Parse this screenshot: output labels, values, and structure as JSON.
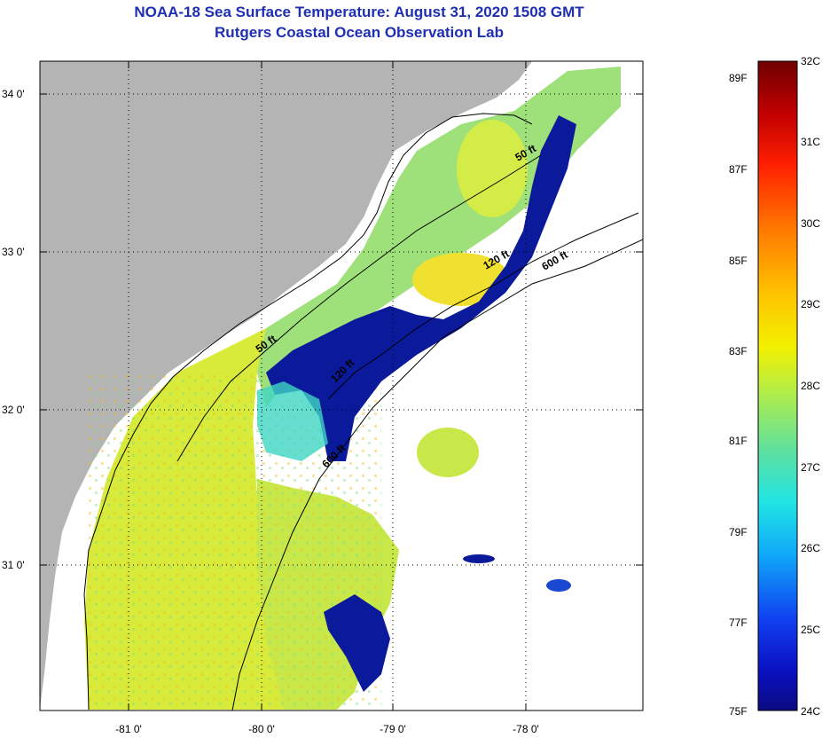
{
  "title": {
    "line1": "NOAA-18 Sea Surface Temperature:  August 31, 2020 1508 GMT",
    "line2": "Rutgers Coastal Ocean Observation Lab"
  },
  "map": {
    "lat_labels": [
      "34 0'",
      "33 0'",
      "32 0'",
      "31 0'"
    ],
    "lon_labels": [
      "-81 0'",
      "-80 0'",
      "-79 0'",
      "-78 0'"
    ],
    "depth_labels": [
      "50 ft",
      "120 ft",
      "600 ft",
      "50 ft",
      "120 ft",
      "600 ft"
    ],
    "colors": {
      "land": "#b4b4b4",
      "cloud": "#ffffff",
      "warm": "#e8e84a",
      "mid": "#9ee07a",
      "cool": "#3fd6c4",
      "cold": "#0a1a9a"
    }
  },
  "colorbar": {
    "fahrenheit": [
      "89F",
      "87F",
      "85F",
      "83F",
      "81F",
      "79F",
      "77F",
      "75F"
    ],
    "celsius": [
      "32C",
      "31C",
      "30C",
      "29C",
      "28C",
      "27C",
      "26C",
      "25C",
      "24C"
    ],
    "colors": [
      "#7a0000",
      "#d40000",
      "#ff5a00",
      "#ffb000",
      "#f6e600",
      "#b8ee40",
      "#6ee08a",
      "#2ee0d0",
      "#10c8f0",
      "#1a6cf0",
      "#1020e0",
      "#0a0a90"
    ]
  }
}
